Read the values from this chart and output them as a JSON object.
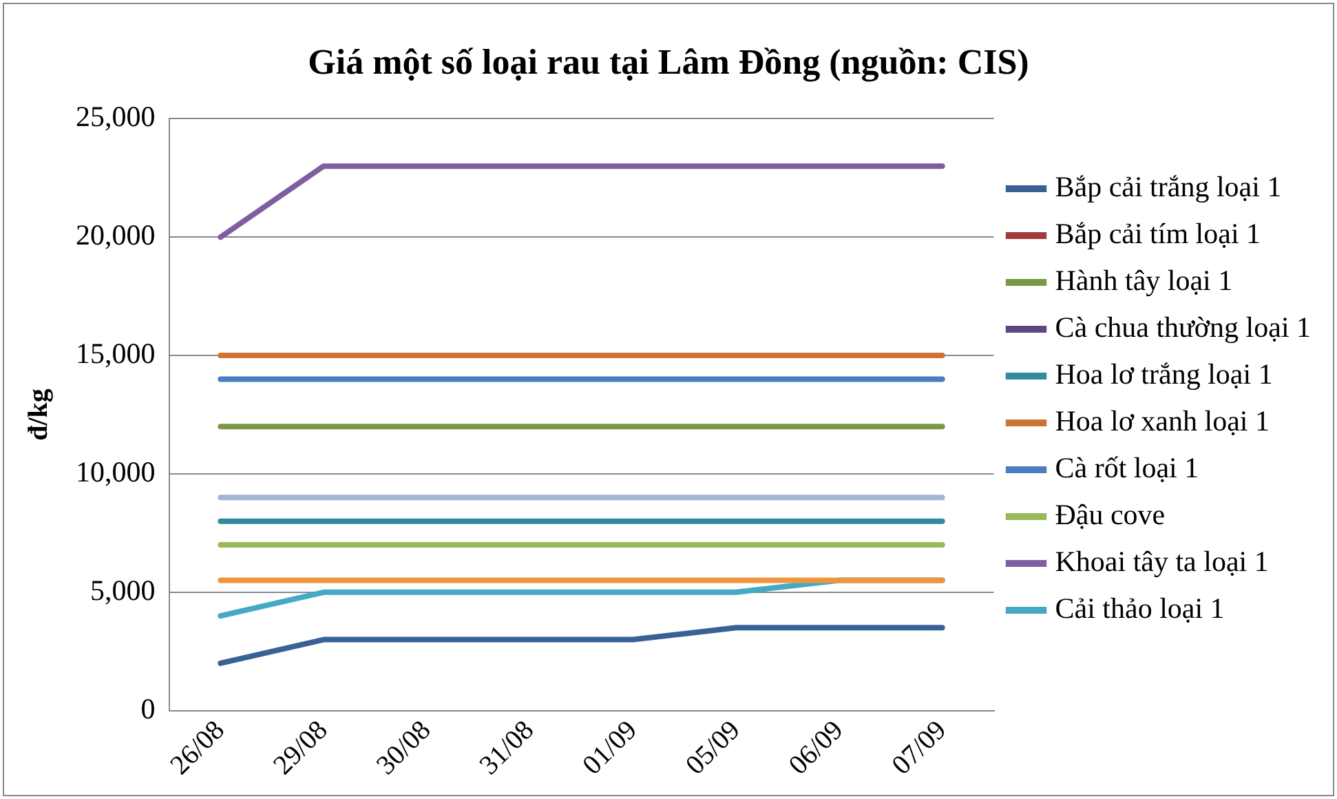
{
  "chart_data": {
    "type": "line",
    "title": "Giá một số loại rau tại Lâm Đồng (nguồn: CIS)",
    "ylabel": "đ/kg",
    "categories": [
      "26/08",
      "29/08",
      "30/08",
      "31/08",
      "01/09",
      "05/09",
      "06/09",
      "07/09"
    ],
    "series": [
      {
        "name": "Bắp cải trắng loại 1",
        "color": "#3a6195",
        "values": [
          2000,
          3000,
          3000,
          3000,
          3000,
          3500,
          3500,
          3500
        ]
      },
      {
        "name": "Bắp cải tím loại 1",
        "color": "#a03d3a",
        "values": [
          null,
          null,
          null,
          null,
          null,
          null,
          null,
          null
        ]
      },
      {
        "name": "Hành tây loại 1",
        "color": "#7a9845",
        "values": [
          12000,
          12000,
          12000,
          12000,
          12000,
          12000,
          12000,
          12000
        ]
      },
      {
        "name": "Cà chua thường loại 1",
        "color": "#5e4681",
        "values": [
          null,
          null,
          null,
          null,
          null,
          null,
          null,
          null
        ]
      },
      {
        "name": "Hoa lơ trắng loại 1",
        "color": "#338a9e",
        "values": [
          8000,
          8000,
          8000,
          8000,
          8000,
          8000,
          8000,
          8000
        ]
      },
      {
        "name": "Hoa lơ xanh loại 1",
        "color": "#cc7533",
        "values": [
          15000,
          15000,
          15000,
          15000,
          15000,
          15000,
          15000,
          15000
        ]
      },
      {
        "name": "Cà rốt loại 1",
        "color": "#4a7ebf",
        "values": [
          14000,
          14000,
          14000,
          14000,
          14000,
          14000,
          14000,
          14000
        ]
      },
      {
        "name": "Đậu cove",
        "color": "#99b957",
        "values": [
          7000,
          7000,
          7000,
          7000,
          7000,
          7000,
          7000,
          7000
        ]
      },
      {
        "name": "Khoai tây ta loại 1",
        "color": "#7d5fa0",
        "values": [
          20000,
          23000,
          23000,
          23000,
          23000,
          23000,
          23000,
          23000
        ]
      },
      {
        "name": "Cải thảo loại 1",
        "color": "#45a9c6",
        "values": [
          4000,
          5000,
          5000,
          5000,
          5000,
          5000,
          5500,
          5500
        ]
      },
      {
        "color": "#a3b4d4",
        "values": [
          9000,
          9000,
          9000,
          9000,
          9000,
          9000,
          9000,
          9000
        ]
      },
      {
        "color": "#f0953e",
        "values": [
          5500,
          5500,
          5500,
          5500,
          5500,
          5500,
          5500,
          5500
        ]
      }
    ],
    "ylim": [
      0,
      25000
    ],
    "yticks": [
      0,
      {
        "value": 5000,
        "label": "5,000"
      },
      {
        "value": 10000,
        "label": "10,000"
      },
      {
        "value": 15000,
        "label": "15,000"
      },
      {
        "value": 20000,
        "label": "20,000"
      },
      {
        "value": 25000,
        "label": "25,000"
      }
    ],
    "grid": "y",
    "legend": "right",
    "marker": "none",
    "line_style": "solid"
  }
}
